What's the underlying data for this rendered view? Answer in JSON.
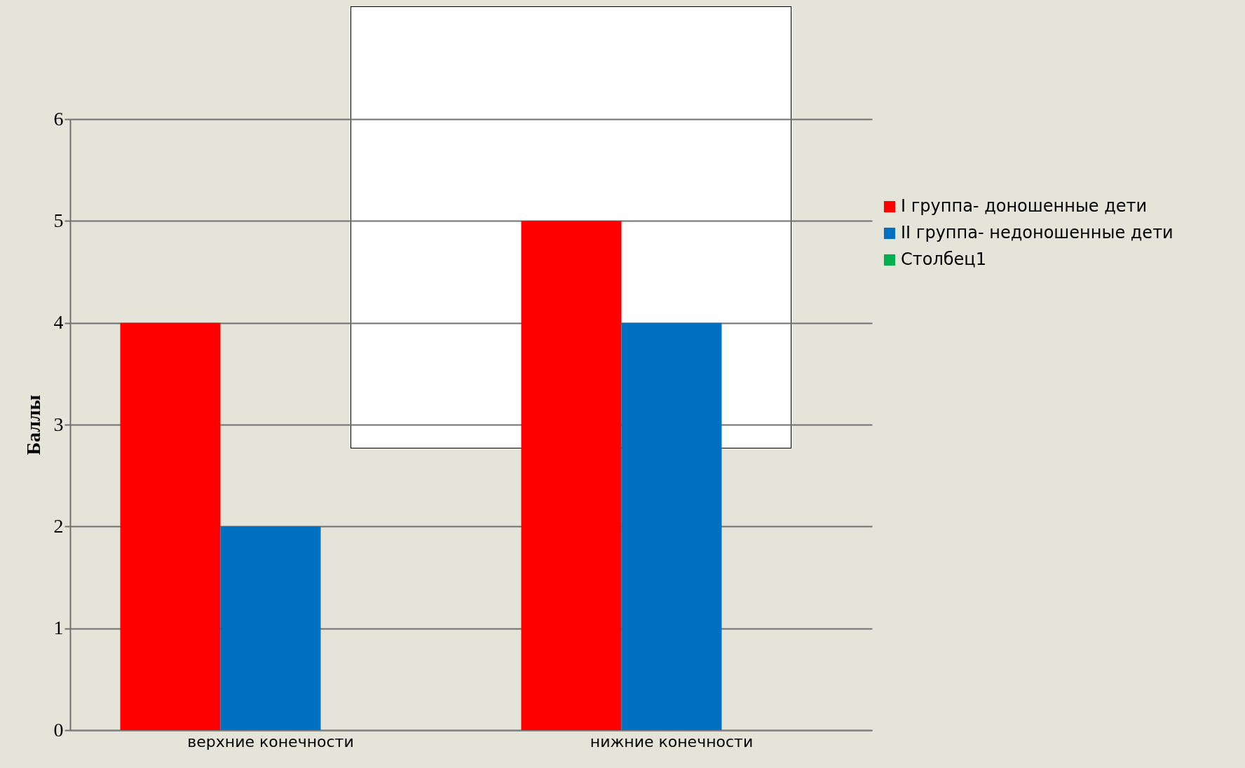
{
  "chart_data": {
    "type": "bar",
    "ylabel": "Баллы",
    "categories": [
      "верхние конечности",
      "нижние конечности"
    ],
    "series": [
      {
        "name": "I группа- доношенные дети",
        "color": "#ff0000",
        "values": [
          4,
          5
        ]
      },
      {
        "name": "II группа- недоношенные дети",
        "color": "#0070c0",
        "values": [
          2,
          4
        ]
      },
      {
        "name": "Столбец1",
        "color": "#00b050",
        "values": [
          null,
          null
        ]
      }
    ],
    "ylim": [
      0,
      6
    ],
    "yticks": [
      0,
      1,
      2,
      3,
      4,
      5,
      6
    ],
    "grid": "y",
    "legend": "right"
  }
}
